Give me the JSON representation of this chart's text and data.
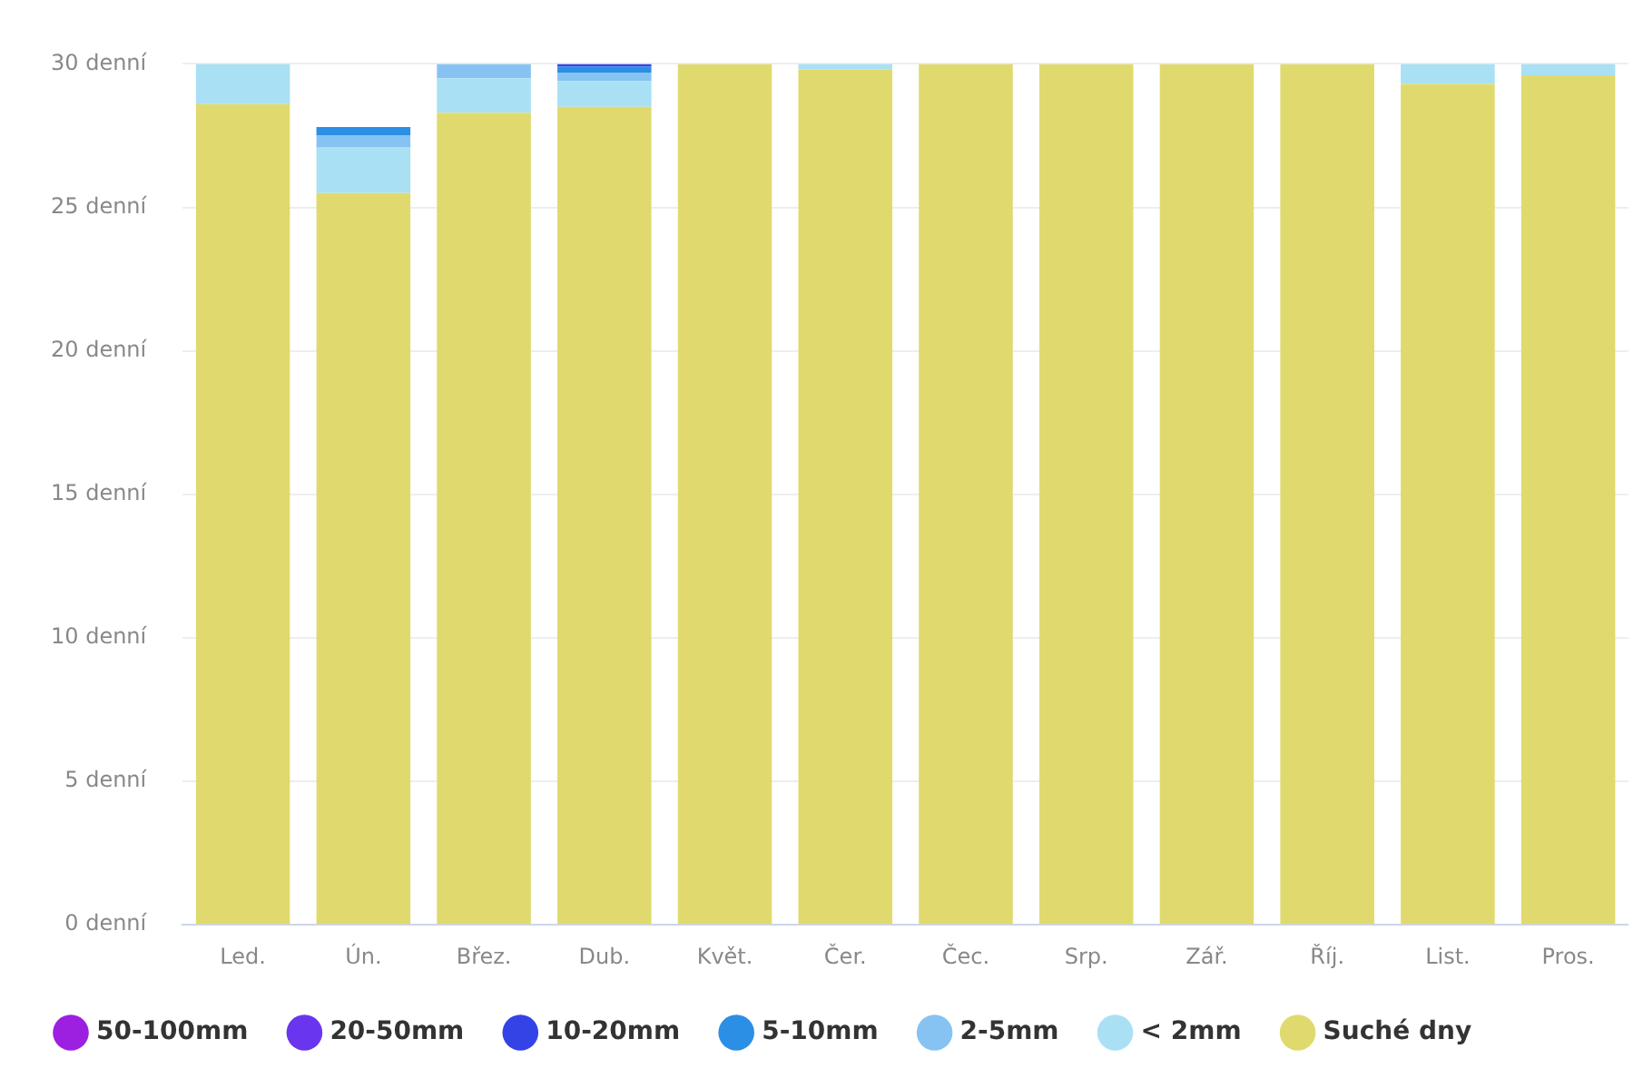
{
  "chart_data": {
    "type": "bar",
    "stacked": true,
    "categories": [
      "Led.",
      "Ún.",
      "Břez.",
      "Dub.",
      "Květ.",
      "Čer.",
      "Čec.",
      "Srp.",
      "Zář.",
      "Říj.",
      "List.",
      "Pros."
    ],
    "series": [
      {
        "name": "Suché dny",
        "color": "#e0da6e",
        "values": [
          28.6,
          25.5,
          28.3,
          28.5,
          30,
          29.8,
          30,
          30,
          30,
          30,
          29.3,
          29.6
        ]
      },
      {
        "name": "< 2mm",
        "color": "#a9e0f4",
        "values": [
          1.4,
          1.6,
          1.2,
          0.9,
          0,
          0.2,
          0,
          0,
          0,
          0,
          0.7,
          0.4
        ]
      },
      {
        "name": "2-5mm",
        "color": "#86c3f2",
        "values": [
          0,
          0.4,
          0.5,
          0.3,
          0,
          0,
          0,
          0,
          0,
          0,
          0,
          0
        ]
      },
      {
        "name": "5-10mm",
        "color": "#2b8fe6",
        "values": [
          0,
          0.3,
          0,
          0.2,
          0,
          0,
          0,
          0,
          0,
          0,
          0,
          0
        ]
      },
      {
        "name": "10-20mm",
        "color": "#3343e6",
        "values": [
          0,
          0,
          0,
          0.1,
          0,
          0,
          0,
          0,
          0,
          0,
          0,
          0
        ]
      },
      {
        "name": "20-50mm",
        "color": "#6a35ee",
        "values": [
          0,
          0,
          0,
          0,
          0,
          0,
          0,
          0,
          0,
          0,
          0,
          0
        ]
      },
      {
        "name": "50-100mm",
        "color": "#9d1fe0",
        "values": [
          0,
          0,
          0,
          0,
          0,
          0,
          0,
          0,
          0,
          0,
          0,
          0
        ]
      }
    ],
    "ylim": [
      0,
      30
    ],
    "yticks": [
      {
        "value": 0,
        "label": "0 denní"
      },
      {
        "value": 5,
        "label": "5 denní"
      },
      {
        "value": 10,
        "label": "10 denní"
      },
      {
        "value": 15,
        "label": "15 denní"
      },
      {
        "value": 20,
        "label": "20 denní"
      },
      {
        "value": 25,
        "label": "25 denní"
      },
      {
        "value": 30,
        "label": "30 denní"
      }
    ],
    "grid": "y",
    "legend": "bottom"
  }
}
